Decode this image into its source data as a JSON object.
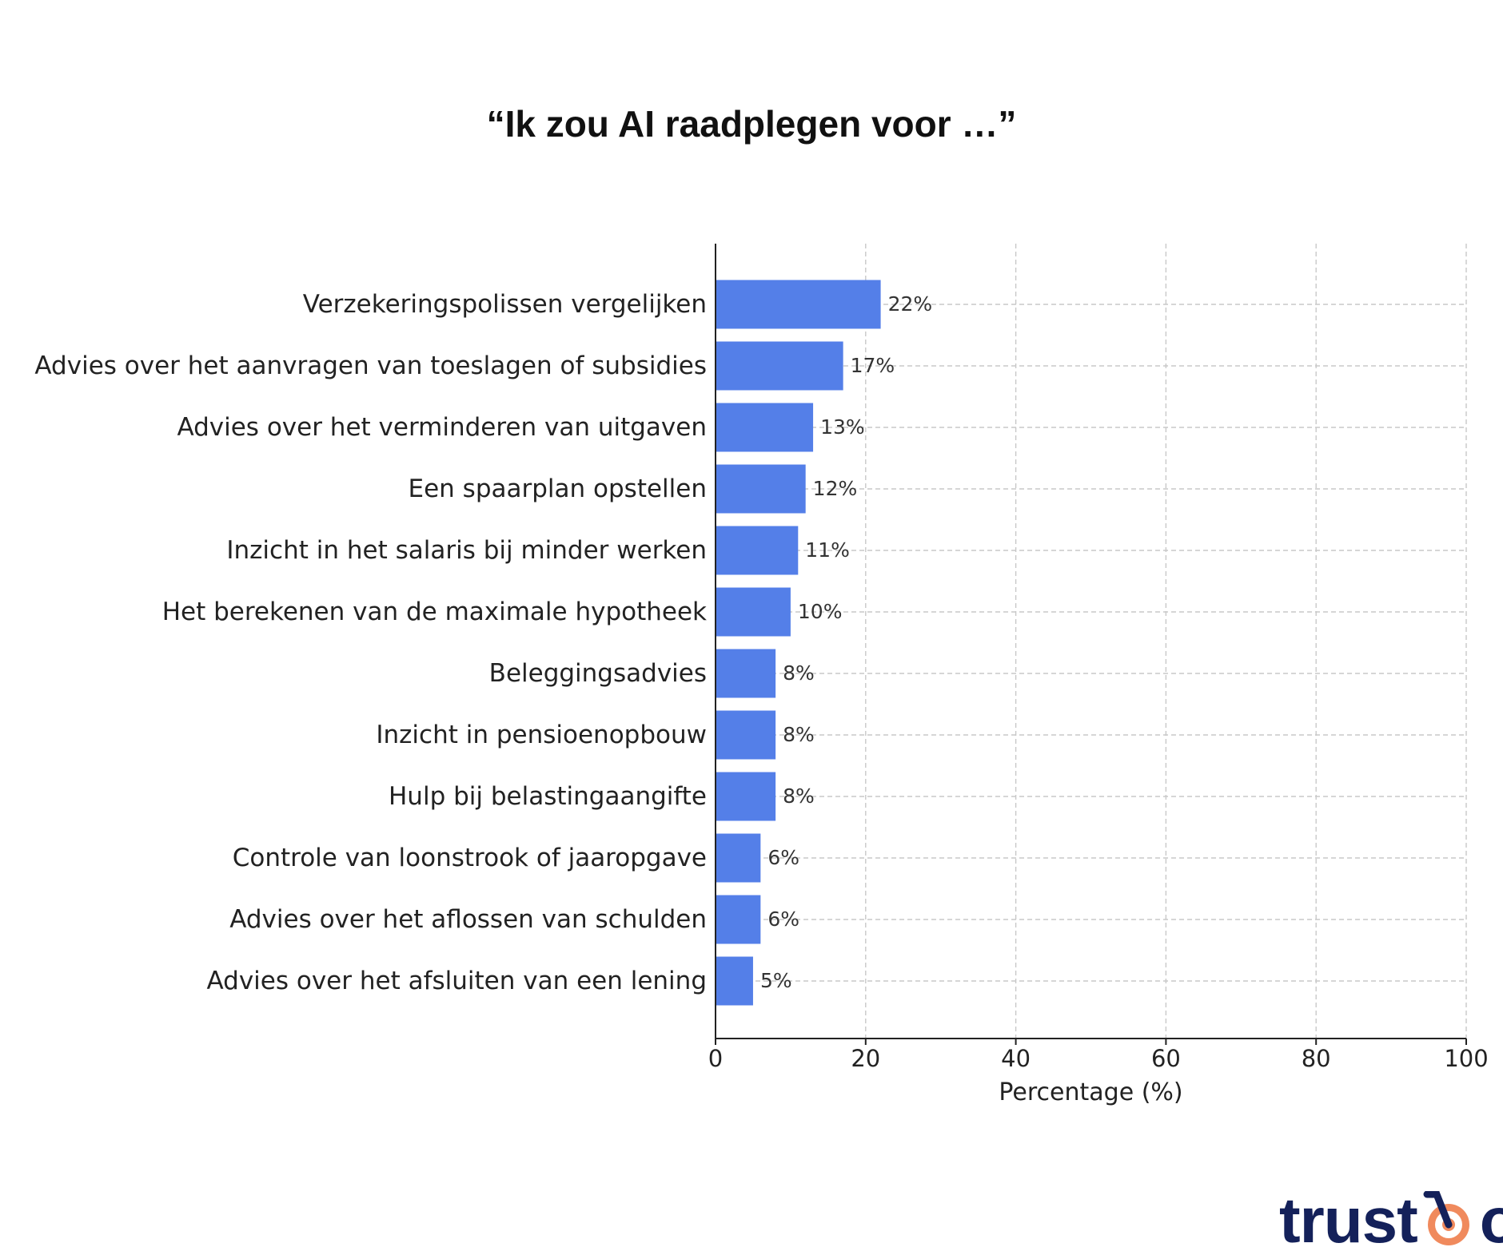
{
  "chart_data": {
    "type": "bar",
    "orientation": "horizontal",
    "title": "“Ik zou AI raadplegen voor …”",
    "xlabel": "Percentage (%)",
    "ylabel": "",
    "xlim": [
      0,
      100
    ],
    "xticks": [
      0,
      20,
      40,
      60,
      80,
      100
    ],
    "grid": true,
    "bar_color": "#547fe8",
    "categories": [
      "Verzekeringspolissen vergelijken",
      "Advies over het aanvragen van toeslagen of subsidies",
      "Advies over het verminderen van uitgaven",
      "Een spaarplan opstellen",
      "Inzicht in het salaris bij minder werken",
      "Het berekenen van de maximale hypotheek",
      "Beleggingsadvies",
      "Inzicht in pensioenopbouw",
      "Hulp bij belastingaangifte",
      "Controle van loonstrook of jaaropgave",
      "Advies over het aflossen van schulden",
      "Advies over het afsluiten van een lening"
    ],
    "values": [
      22,
      17,
      13,
      12,
      11,
      10,
      8,
      8,
      8,
      6,
      6,
      5
    ],
    "data_labels": [
      "22%",
      "17%",
      "13%",
      "12%",
      "11%",
      "10%",
      "8%",
      "8%",
      "8%",
      "6%",
      "6%",
      "5%"
    ]
  },
  "brand": {
    "text_before": "trust",
    "text_after": "o",
    "mark_icon": "target-icon",
    "text_color": "#14215a",
    "accent_color": "#f08a5d"
  }
}
